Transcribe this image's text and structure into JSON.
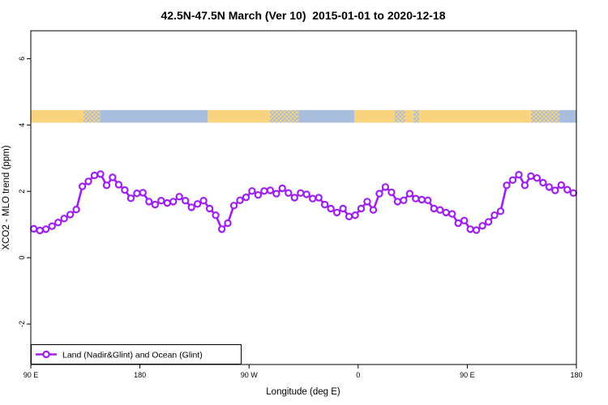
{
  "figure": {
    "background": "#ffffff",
    "frame_color": "#000000"
  },
  "chart_data": {
    "type": "line",
    "title": "42.5N-47.5N March (Ver 10)  2015-01-01 to 2020-12-18",
    "xlabel": "Longitude (deg E)",
    "ylabel": "XCO2 - MLO trend (ppm)",
    "grid": "off",
    "x_axis": {
      "range_lon": [
        90,
        540
      ],
      "ticks": [
        {
          "lon": 90,
          "label": "90 E"
        },
        {
          "lon": 180,
          "label": "180"
        },
        {
          "lon": 270,
          "label": "90 W"
        },
        {
          "lon": 360,
          "label": "0"
        },
        {
          "lon": 450,
          "label": "90 E"
        },
        {
          "lon": 540,
          "label": "180"
        }
      ]
    },
    "y_axis": {
      "range": [
        -3.22,
        6.84
      ],
      "ticks": [
        {
          "value": -2,
          "label": "-2"
        },
        {
          "value": 0,
          "label": "0"
        },
        {
          "value": 2,
          "label": "2"
        },
        {
          "value": 4,
          "label": "4"
        },
        {
          "value": 6,
          "label": "6"
        }
      ]
    },
    "series": [
      {
        "name": "Land (Nadir&Glint) and Ocean (Glint)",
        "color": "#A020F0",
        "marker": "open-circle",
        "x_start_lon": 92.5,
        "x_step_lon": 5,
        "values": [
          0.87,
          0.82,
          0.86,
          0.95,
          1.06,
          1.18,
          1.3,
          1.45,
          2.15,
          2.3,
          2.48,
          2.52,
          2.18,
          2.42,
          2.2,
          2.04,
          1.79,
          1.94,
          1.96,
          1.69,
          1.6,
          1.72,
          1.65,
          1.69,
          1.84,
          1.72,
          1.52,
          1.62,
          1.72,
          1.48,
          1.28,
          0.86,
          1.04,
          1.57,
          1.73,
          1.82,
          2.01,
          1.89,
          2.01,
          2.03,
          1.93,
          2.09,
          1.95,
          1.81,
          1.95,
          1.91,
          1.78,
          1.81,
          1.6,
          1.48,
          1.36,
          1.48,
          1.24,
          1.28,
          1.48,
          1.69,
          1.44,
          1.93,
          2.13,
          1.97,
          1.69,
          1.73,
          1.93,
          1.78,
          1.75,
          1.73,
          1.48,
          1.44,
          1.36,
          1.32,
          1.04,
          1.12,
          0.86,
          0.83,
          0.96,
          1.08,
          1.28,
          1.4,
          2.18,
          2.34,
          2.5,
          2.18,
          2.46,
          2.4,
          2.26,
          2.13,
          2.03,
          2.19,
          2.05,
          1.95
        ]
      }
    ],
    "surface_band": {
      "description": "surface type strip (land=yellow, ocean=blue) vs longitude",
      "value_range": [
        4.07,
        4.45
      ],
      "colors": {
        "land": "#FAD37F",
        "ocean": "#A8BEDC"
      },
      "segments": [
        {
          "type": "land",
          "from_lon": 90,
          "to_lon": 133.5
        },
        {
          "type": "mixed",
          "from_lon": 133.5,
          "to_lon": 147
        },
        {
          "type": "ocean",
          "from_lon": 147,
          "to_lon": 236
        },
        {
          "type": "land",
          "from_lon": 236,
          "to_lon": 287
        },
        {
          "type": "mixed",
          "from_lon": 287,
          "to_lon": 311
        },
        {
          "type": "ocean",
          "from_lon": 311,
          "to_lon": 357
        },
        {
          "type": "land",
          "from_lon": 357,
          "to_lon": 390
        },
        {
          "type": "mixed",
          "from_lon": 390,
          "to_lon": 399
        },
        {
          "type": "land",
          "from_lon": 399,
          "to_lon": 405.5
        },
        {
          "type": "mixed",
          "from_lon": 405.5,
          "to_lon": 410.5
        },
        {
          "type": "land",
          "from_lon": 410.5,
          "to_lon": 502.5
        },
        {
          "type": "mixed",
          "from_lon": 502.5,
          "to_lon": 526
        },
        {
          "type": "ocean",
          "from_lon": 526,
          "to_lon": 540
        }
      ]
    },
    "legend": {
      "label": "Land (Nadir&Glint) and Ocean (Glint)",
      "position": "bottom-left",
      "box": "on"
    }
  }
}
